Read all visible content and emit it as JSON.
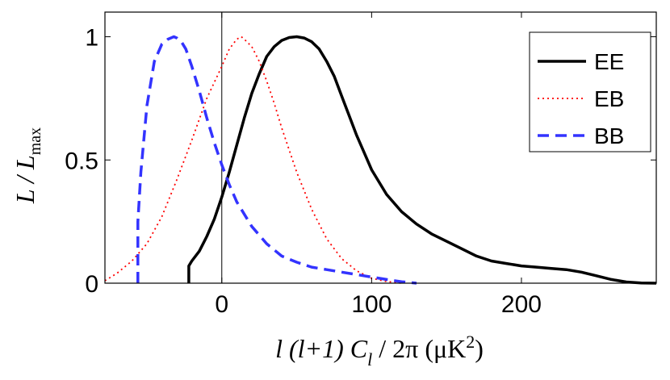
{
  "chart_data": {
    "type": "line",
    "title": "",
    "xlabel": {
      "prefix": "l (l+1)  C",
      "subscript": "l",
      "middle": " / 2π (μK",
      "superscript": "2",
      "suffix": ")"
    },
    "ylabel": {
      "main": "L / L",
      "subscript": "max"
    },
    "xlim": [
      -78,
      290
    ],
    "ylim": [
      0,
      1.1
    ],
    "xticks": [
      0,
      100,
      200
    ],
    "xtick_labels": [
      "0",
      "100",
      "200"
    ],
    "yticks": [
      0,
      0.5,
      1
    ],
    "ytick_labels": [
      "0",
      "0.5",
      "1"
    ],
    "vertical_reference_line": 0,
    "legend": {
      "placement": "top-right"
    },
    "series": [
      {
        "name": "EE",
        "color": "#000000",
        "style": "solid",
        "x": [
          -22,
          -22,
          -20,
          -15,
          -10,
          -5,
          0,
          5,
          10,
          15,
          20,
          25,
          30,
          35,
          40,
          45,
          50,
          55,
          60,
          65,
          70,
          75,
          80,
          85,
          90,
          95,
          100,
          110,
          120,
          130,
          140,
          150,
          160,
          170,
          180,
          190,
          200,
          210,
          220,
          230,
          240,
          250,
          260,
          270,
          280,
          290
        ],
        "y": [
          0,
          0.07,
          0.09,
          0.13,
          0.19,
          0.26,
          0.35,
          0.45,
          0.56,
          0.67,
          0.77,
          0.85,
          0.92,
          0.96,
          0.985,
          0.997,
          1.0,
          0.995,
          0.98,
          0.95,
          0.9,
          0.84,
          0.76,
          0.68,
          0.6,
          0.53,
          0.46,
          0.36,
          0.29,
          0.24,
          0.2,
          0.17,
          0.14,
          0.11,
          0.09,
          0.08,
          0.07,
          0.065,
          0.06,
          0.055,
          0.045,
          0.03,
          0.015,
          0.005,
          0.001,
          0.0
        ]
      },
      {
        "name": "EB",
        "color": "#ff0000",
        "style": "dotted",
        "x": [
          -78,
          -70,
          -60,
          -50,
          -40,
          -30,
          -20,
          -10,
          0,
          5,
          10,
          13,
          15,
          20,
          25,
          30,
          35,
          40,
          50,
          60,
          70,
          80,
          90,
          100,
          110,
          120
        ],
        "y": [
          0.01,
          0.04,
          0.09,
          0.16,
          0.27,
          0.42,
          0.58,
          0.75,
          0.88,
          0.95,
          0.99,
          1.0,
          0.99,
          0.96,
          0.9,
          0.82,
          0.73,
          0.63,
          0.45,
          0.3,
          0.18,
          0.1,
          0.05,
          0.02,
          0.007,
          0.0
        ]
      },
      {
        "name": "BB",
        "color": "#3333ff",
        "style": "dashed",
        "x": [
          -56,
          -56,
          -54,
          -50,
          -45,
          -40,
          -36,
          -32,
          -30,
          -27,
          -24,
          -20,
          -15,
          -10,
          -5,
          0,
          5,
          10,
          20,
          30,
          40,
          50,
          60,
          70,
          80,
          90,
          100,
          110,
          120,
          130
        ],
        "y": [
          0,
          0.25,
          0.45,
          0.72,
          0.9,
          0.97,
          0.99,
          1.0,
          0.995,
          0.98,
          0.95,
          0.88,
          0.78,
          0.67,
          0.57,
          0.48,
          0.4,
          0.33,
          0.23,
          0.16,
          0.11,
          0.085,
          0.065,
          0.055,
          0.045,
          0.035,
          0.025,
          0.015,
          0.006,
          0.0
        ]
      }
    ]
  }
}
